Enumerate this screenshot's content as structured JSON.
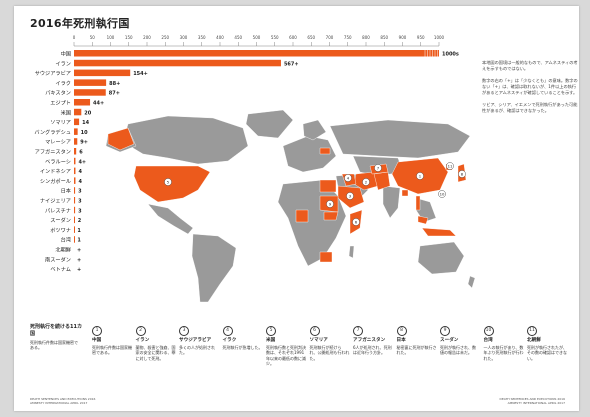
{
  "title": "2016年死刑執行国",
  "chart_data": {
    "type": "bar",
    "title": "2016年死刑執行国",
    "xlabel": "",
    "ylabel": "",
    "xlim": [
      0,
      1000
    ],
    "ticks": [
      0,
      50,
      100,
      150,
      200,
      250,
      300,
      350,
      400,
      450,
      500,
      550,
      600,
      650,
      700,
      750,
      800,
      850,
      900,
      950,
      1000
    ],
    "categories": [
      "中国",
      "イラン",
      "サウジアラビア",
      "イラク",
      "パキスタン",
      "エジプト",
      "米国",
      "ソマリア",
      "バングラデシュ",
      "マレーシア",
      "アフガニスタン",
      "ベラルーシ",
      "インドネシア",
      "シンガポール",
      "日本",
      "ナイジェリア",
      "パレスチナ",
      "スーダン",
      "ボツワナ",
      "台湾",
      "北朝鮮",
      "南スーダン",
      "ベトナム"
    ],
    "values": [
      1000,
      567,
      154,
      88,
      87,
      44,
      20,
      14,
      10,
      9,
      6,
      4,
      4,
      4,
      3,
      3,
      3,
      2,
      1,
      1,
      null,
      null,
      null
    ],
    "value_labels": [
      "1000s",
      "567+",
      "154+",
      "88+",
      "87+",
      "44+",
      "20",
      "14",
      "10",
      "9+",
      "6",
      "4+",
      "4",
      "4",
      "3",
      "3",
      "3",
      "2",
      "1",
      "1",
      "+",
      "+",
      "+"
    ],
    "bar_color": "#ec5a1c"
  },
  "notes": [
    "本地図の国境は一般的なもので、アムネスティの考えを示すものではない。",
    "数字の右の「+」は「少なくとも」の意味。数字のない「+」は、確認は取れないが、1件以上の執行があるとアムネスティが確認していることを示す。",
    "リビア、シリア、イエメンで死刑執行があった可能性があるが、確認はできなかった。"
  ],
  "lead": {
    "title": "死刑執行を続ける11カ国",
    "subtitle": "死刑執行件数は国家機密である。"
  },
  "legend": [
    {
      "num": "1",
      "country": "中国",
      "text": "死刑執行件数は国家機密である。"
    },
    {
      "num": "2",
      "country": "イラン",
      "text": "薬物、殺害と強姦、国家の安全に関わる、罪に対して死刑。"
    },
    {
      "num": "3",
      "country": "サウジアラビア",
      "text": "多くの人が処刑された。"
    },
    {
      "num": "4",
      "country": "イラク",
      "text": "死刑執行が急増した。"
    },
    {
      "num": "5",
      "country": "米国",
      "text": "死刑執行数と死刑判決数は、それぞれ1991年以来の最低の数に減少。"
    },
    {
      "num": "6",
      "country": "ソマリア",
      "text": "死刑執行が続けられ、公開処刑も行われた。"
    },
    {
      "num": "7",
      "country": "アフガニスタン",
      "text": "6人が処刑され、死刑は近年行う方針。"
    },
    {
      "num": "8",
      "country": "日本",
      "text": "秘密裏に死刑が執行された。"
    },
    {
      "num": "9",
      "country": "スーダン",
      "text": "死刑が執行され、数値の報告は未だ。"
    },
    {
      "num": "10",
      "country": "台湾",
      "text": "一人の執行があり、数年ぶり死刑執行が行われた。"
    },
    {
      "num": "11",
      "country": "北朝鮮",
      "text": "死刑が執行されたが、その数の確認はできない。"
    }
  ],
  "map_markers": [
    {
      "num": "1",
      "country": "中国"
    },
    {
      "num": "2",
      "country": "イラン"
    },
    {
      "num": "3",
      "country": "サウジアラビア"
    },
    {
      "num": "4",
      "country": "イラク"
    },
    {
      "num": "5",
      "country": "米国"
    },
    {
      "num": "6",
      "country": "ソマリア"
    },
    {
      "num": "7",
      "country": "アフガニスタン"
    },
    {
      "num": "8",
      "country": "日本"
    },
    {
      "num": "9",
      "country": "スーダン"
    },
    {
      "num": "10",
      "country": "台湾"
    },
    {
      "num": "11",
      "country": "北朝鮮"
    }
  ],
  "footer": {
    "left": "DEATH SENTENCES AND EXECUTIONS 2016",
    "left2": "AMNESTY INTERNATIONAL APRIL 2017",
    "right": "DEATH SENTENCES AND EXECUTIONS 2016",
    "right2": "AMNESTY INTERNATIONAL APRIL 2017"
  },
  "colors": {
    "highlight": "#ec5a1c",
    "land": "#9a9a9a",
    "border": "#ffffff"
  }
}
